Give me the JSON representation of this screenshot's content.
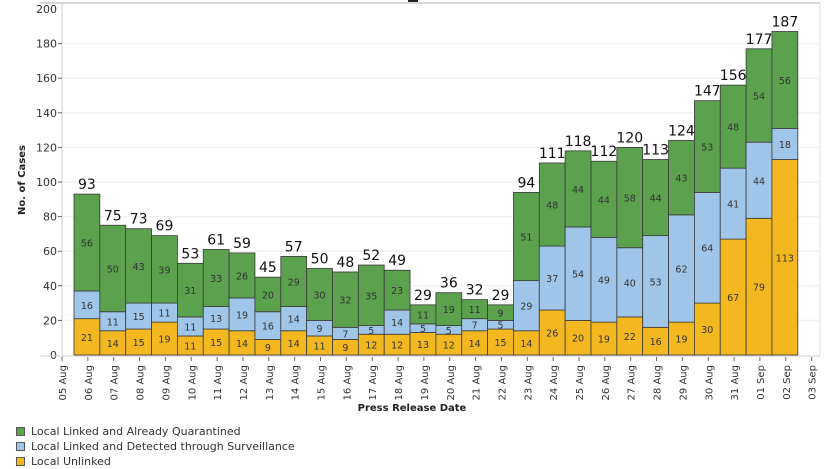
{
  "chart_data": {
    "type": "bar",
    "stacked": true,
    "title": "",
    "xlabel": "Press Release Date",
    "ylabel": "No. of Cases",
    "ylim": [
      0,
      200
    ],
    "yticks": [
      0,
      20,
      40,
      60,
      80,
      100,
      120,
      140,
      160,
      180,
      200
    ],
    "grid": true,
    "legend_position": "bottom-left",
    "xtick_labels": [
      "05 Aug",
      "06 Aug",
      "07 Aug",
      "08 Aug",
      "09 Aug",
      "10 Aug",
      "11 Aug",
      "12 Aug",
      "13 Aug",
      "14 Aug",
      "15 Aug",
      "16 Aug",
      "17 Aug",
      "18 Aug",
      "19 Aug",
      "20 Aug",
      "21 Aug",
      "22 Aug",
      "23 Aug",
      "24 Aug",
      "25 Aug",
      "26 Aug",
      "27 Aug",
      "28 Aug",
      "29 Aug",
      "30 Aug",
      "31 Aug",
      "01 Sep",
      "02 Sep",
      "03 Sep"
    ],
    "categories": [
      "05 Aug",
      "06 Aug",
      "07 Aug",
      "08 Aug",
      "09 Aug",
      "10 Aug",
      "11 Aug",
      "12 Aug",
      "13 Aug",
      "14 Aug",
      "15 Aug",
      "16 Aug",
      "17 Aug",
      "18 Aug",
      "19 Aug",
      "20 Aug",
      "21 Aug",
      "22 Aug",
      "23 Aug",
      "24 Aug",
      "25 Aug",
      "26 Aug",
      "27 Aug",
      "28 Aug",
      "29 Aug",
      "30 Aug",
      "31 Aug",
      "01 Sep"
    ],
    "series": [
      {
        "name": "Local Unlinked",
        "color": "#f3b71f",
        "values": [
          21,
          14,
          15,
          19,
          11,
          15,
          14,
          9,
          14,
          11,
          9,
          12,
          12,
          13,
          12,
          14,
          15,
          14,
          26,
          20,
          19,
          22,
          16,
          19,
          30,
          67,
          79,
          113
        ]
      },
      {
        "name": "Local Linked and Detected through Surveillance",
        "color": "#9fc5e8",
        "values": [
          16,
          11,
          15,
          11,
          11,
          13,
          19,
          16,
          14,
          9,
          7,
          5,
          14,
          5,
          5,
          7,
          5,
          29,
          37,
          54,
          49,
          40,
          53,
          62,
          64,
          41,
          44,
          18
        ]
      },
      {
        "name": "Local Linked and Already Quarantined",
        "color": "#5ba14e",
        "values": [
          56,
          50,
          43,
          39,
          31,
          33,
          26,
          20,
          29,
          30,
          32,
          35,
          23,
          11,
          19,
          11,
          9,
          51,
          48,
          44,
          44,
          58,
          44,
          43,
          53,
          48,
          54,
          56
        ]
      }
    ],
    "totals": [
      93,
      75,
      73,
      69,
      53,
      61,
      59,
      45,
      57,
      50,
      48,
      52,
      49,
      29,
      36,
      32,
      29,
      94,
      111,
      118,
      112,
      120,
      113,
      124,
      147,
      156,
      177,
      187
    ]
  },
  "legend": [
    {
      "label": "Local Linked and Already Quarantined",
      "color": "#5ba14e"
    },
    {
      "label": "Local Linked and Detected through Surveillance",
      "color": "#9fc5e8"
    },
    {
      "label": "Local Unlinked",
      "color": "#f3b71f"
    }
  ]
}
